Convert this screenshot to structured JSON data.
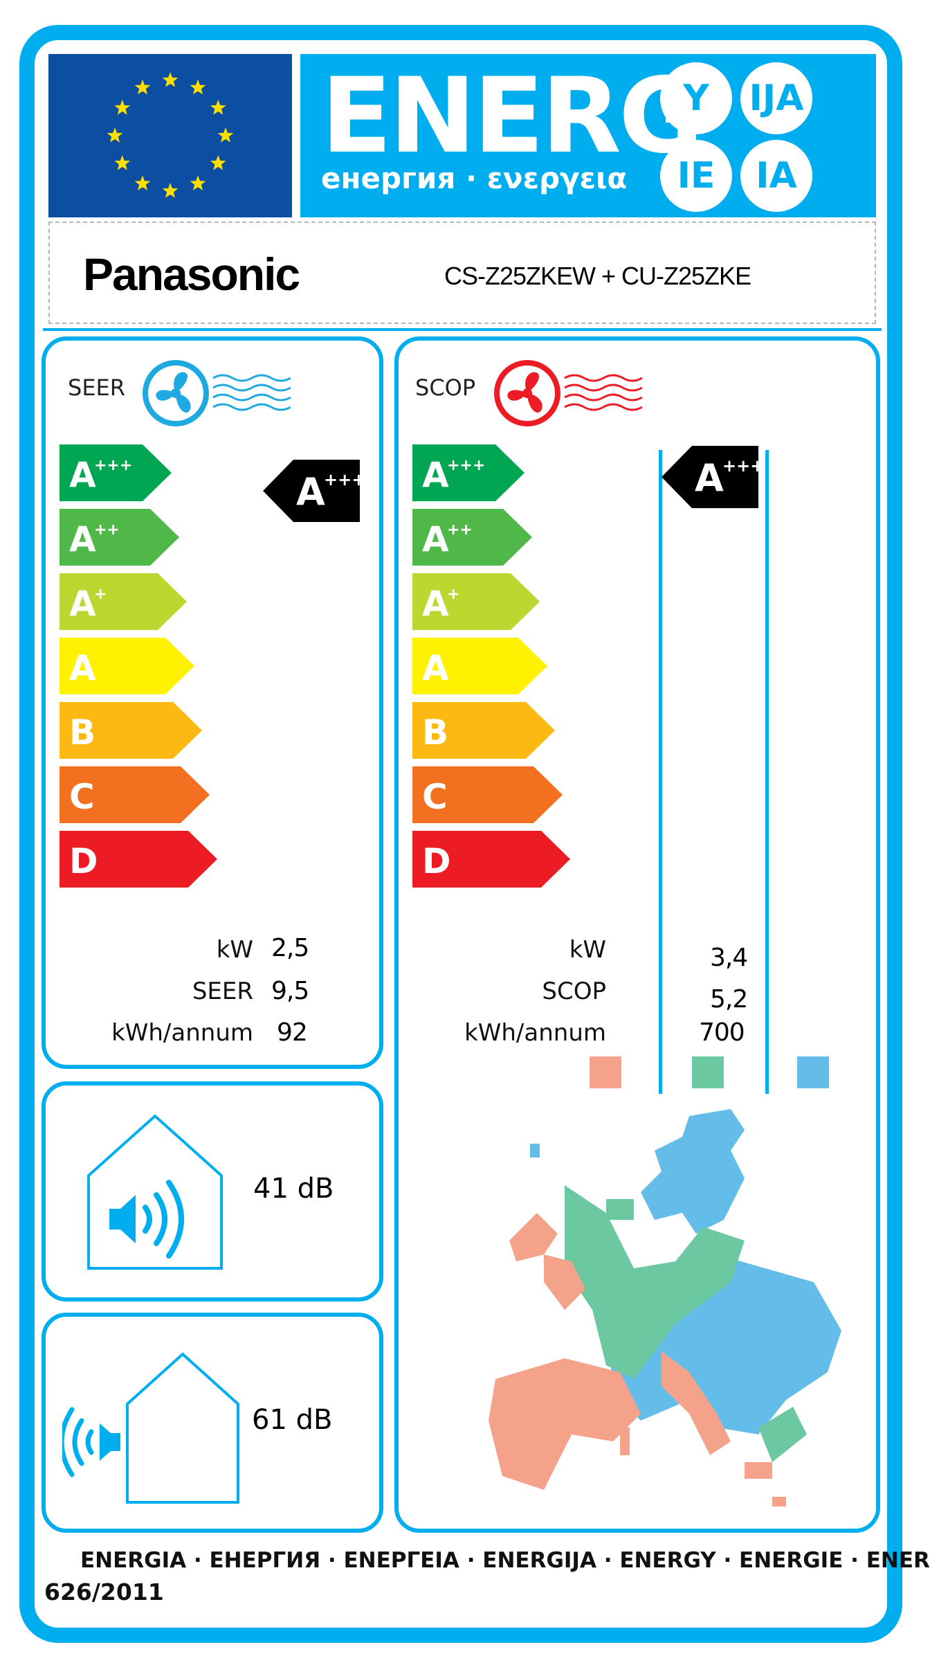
{
  "header": {
    "energy_word": "ENERG",
    "energy_subtitle": "енергия · ενεργεια",
    "suffixes": [
      "Y",
      "IJA",
      "IE",
      "IA"
    ]
  },
  "supplier": {
    "brand": "Panasonic",
    "model": "CS-Z25ZKEW + CU-Z25ZKE"
  },
  "cooling": {
    "title": "SEER",
    "icon": "fan-icon",
    "fan_color": "#1fa9e1",
    "classes": [
      "A",
      "A",
      "A",
      "A",
      "B",
      "C",
      "D"
    ],
    "class_superscripts": [
      "+++",
      "++",
      "+",
      "",
      "",
      "",
      ""
    ],
    "class_colors": [
      "#00a651",
      "#50b848",
      "#bed630",
      "#fff200",
      "#fdb913",
      "#f37021",
      "#ed1c24"
    ],
    "rating": "A",
    "rating_superscript": "+++",
    "labels": [
      "kW",
      "SEER",
      "kWh/annum"
    ],
    "values": [
      "2,5",
      "9,5",
      "92"
    ]
  },
  "heating": {
    "title": "SCOP",
    "icon": "fan-icon",
    "fan_color": "#ed1c24",
    "classes": [
      "A",
      "A",
      "A",
      "A",
      "B",
      "C",
      "D"
    ],
    "class_superscripts": [
      "+++",
      "++",
      "+",
      "",
      "",
      "",
      ""
    ],
    "rating": "A",
    "rating_superscript": "+++",
    "labels": [
      "kW",
      "SCOP",
      "kWh/annum"
    ],
    "values": [
      "3,4",
      "5,2",
      "700"
    ],
    "zone_colors": [
      "#f4a38a",
      "#6cc8a0",
      "#64bce9"
    ]
  },
  "noise": {
    "indoor_value": "41 dB",
    "outdoor_value": "61 dB",
    "indoor_icon": "indoor-speaker-icon",
    "outdoor_icon": "outdoor-speaker-icon"
  },
  "footer": {
    "languages": "ENERGIA · ЕНЕРГИЯ · ΕΝΕΡΓΕΙΑ · ENERGIJA · ENERGY · ENERGIE · ENERGI",
    "regulation": "626/2011"
  }
}
